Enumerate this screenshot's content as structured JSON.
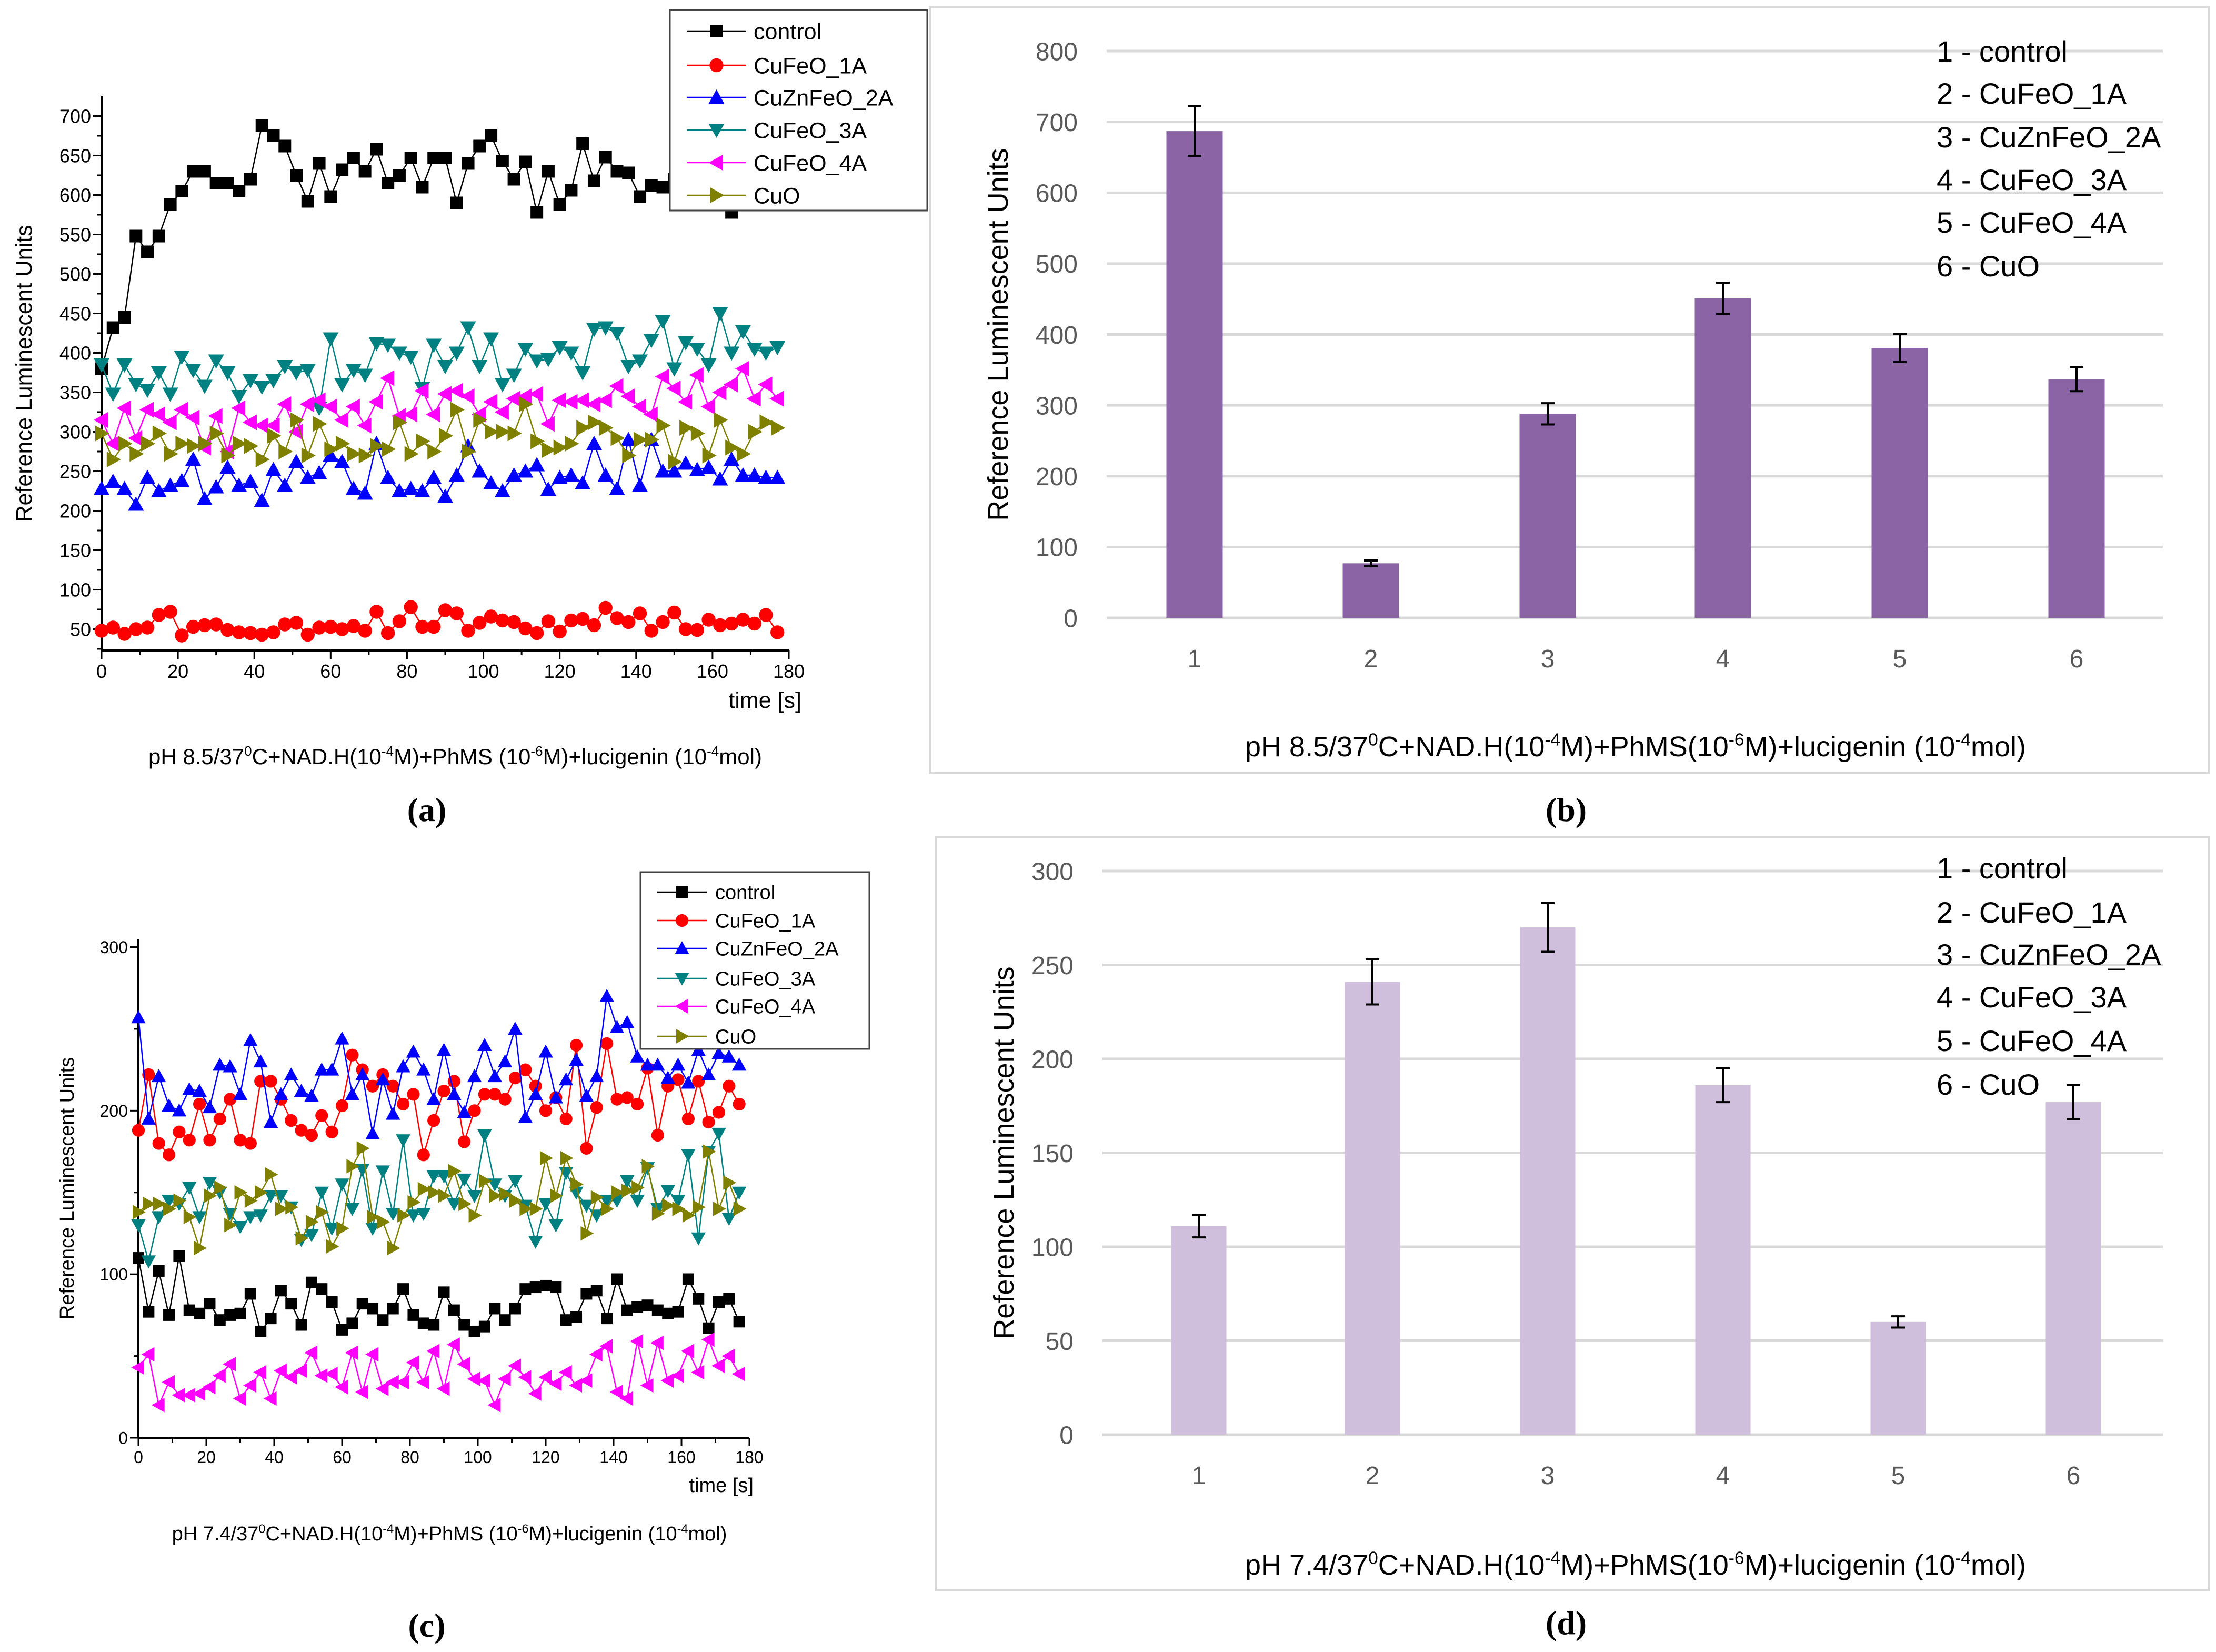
{
  "colors": {
    "control": "#000000",
    "CuFeO_1A": "#ff0000",
    "CuZnFeO_2A": "#0000ff",
    "CuFeO_3A": "#008080",
    "CuFeO_4A": "#ff00ff",
    "CuO": "#808000",
    "bar_b": "#8a64a5",
    "bar_d": "#cfbfdd",
    "grid": "#d9d9d9"
  },
  "chart_data": [
    {
      "panel": "(a)",
      "type": "line",
      "ylabel": "Reference Luminescent Units",
      "xlabel": "time [s]",
      "xlim": [
        0,
        180
      ],
      "ylim": [
        23,
        725
      ],
      "xticks": [
        0,
        20,
        40,
        60,
        80,
        100,
        120,
        140,
        160,
        180
      ],
      "yticks": [
        50,
        100,
        150,
        200,
        250,
        300,
        350,
        400,
        450,
        500,
        550,
        600,
        650,
        700
      ],
      "x_step": 3,
      "legend_position": "top-right",
      "caption": [
        {
          "t": "pH 8.5/37"
        },
        {
          "s": "0"
        },
        {
          "t": "C+NAD.H(10"
        },
        {
          "s": "-4"
        },
        {
          "t": "M)+PhMS (10"
        },
        {
          "s": "-6"
        },
        {
          "t": "M)+lucigenin (10"
        },
        {
          "s": "-4"
        },
        {
          "t": "mol)"
        }
      ],
      "series": [
        {
          "name": "control",
          "marker": "square",
          "values": [
            380,
            432,
            445,
            548,
            528,
            548,
            588,
            605,
            630,
            630,
            615,
            615,
            605,
            620,
            688,
            675,
            662,
            625,
            592,
            640,
            598,
            632,
            647,
            630,
            658,
            615,
            625,
            647,
            610,
            647,
            647,
            590,
            640,
            662,
            675,
            643,
            620,
            642,
            578,
            630,
            588,
            606,
            665,
            618,
            648,
            630,
            628,
            598,
            612,
            610,
            620,
            640,
            625,
            610,
            605,
            578,
            600,
            620,
            610,
            615
          ]
        },
        {
          "name": "CuFeO_1A",
          "marker": "circle",
          "values": [
            48,
            52,
            44,
            50,
            52,
            68,
            72,
            42,
            53,
            55,
            56,
            49,
            46,
            45,
            43,
            46,
            56,
            58,
            43,
            52,
            53,
            50,
            54,
            48,
            72,
            45,
            60,
            78,
            53,
            53,
            74,
            70,
            48,
            58,
            66,
            61,
            59,
            51,
            45,
            60,
            47,
            61,
            63,
            55,
            77,
            64,
            59,
            70,
            48,
            59,
            71,
            50,
            49,
            62,
            55,
            57,
            62,
            57,
            68,
            46
          ]
        },
        {
          "name": "CuZnFeO_2A",
          "marker": "triangle-up",
          "values": [
            228,
            237,
            228,
            208,
            242,
            225,
            232,
            238,
            265,
            215,
            230,
            255,
            232,
            237,
            213,
            252,
            232,
            262,
            242,
            248,
            270,
            262,
            228,
            222,
            285,
            242,
            225,
            228,
            225,
            242,
            218,
            245,
            282,
            250,
            235,
            225,
            245,
            250,
            258,
            227,
            242,
            245,
            235,
            285,
            245,
            228,
            290,
            232,
            290,
            250,
            250,
            260,
            252,
            255,
            240,
            265,
            245,
            245,
            242,
            242
          ]
        },
        {
          "name": "CuFeO_3A",
          "marker": "triangle-down",
          "values": [
            385,
            348,
            385,
            360,
            353,
            375,
            348,
            395,
            378,
            358,
            390,
            375,
            345,
            365,
            357,
            365,
            383,
            375,
            378,
            330,
            418,
            360,
            378,
            372,
            412,
            410,
            400,
            395,
            355,
            410,
            383,
            400,
            432,
            383,
            418,
            360,
            372,
            405,
            390,
            392,
            407,
            400,
            375,
            430,
            432,
            425,
            383,
            390,
            416,
            440,
            380,
            413,
            405,
            385,
            450,
            400,
            427,
            405,
            400,
            407
          ]
        },
        {
          "name": "CuFeO_4A",
          "marker": "triangle-left",
          "values": [
            315,
            285,
            330,
            292,
            328,
            322,
            312,
            328,
            318,
            280,
            320,
            275,
            330,
            312,
            308,
            308,
            335,
            300,
            335,
            340,
            332,
            315,
            332,
            308,
            338,
            368,
            320,
            322,
            352,
            322,
            348,
            352,
            345,
            322,
            338,
            325,
            342,
            345,
            348,
            310,
            340,
            338,
            340,
            335,
            340,
            358,
            345,
            332,
            322,
            370,
            355,
            338,
            372,
            332,
            350,
            360,
            380,
            342,
            360,
            342
          ]
        },
        {
          "name": "CuO",
          "marker": "triangle-right",
          "values": [
            298,
            265,
            285,
            272,
            285,
            298,
            272,
            285,
            282,
            285,
            298,
            270,
            285,
            282,
            265,
            295,
            275,
            315,
            270,
            310,
            278,
            285,
            272,
            270,
            282,
            278,
            312,
            272,
            288,
            275,
            295,
            328,
            275,
            315,
            300,
            300,
            298,
            335,
            288,
            277,
            280,
            285,
            305,
            312,
            305,
            292,
            270,
            290,
            290,
            308,
            262,
            305,
            298,
            270,
            315,
            280,
            272,
            300,
            312,
            305
          ]
        }
      ]
    },
    {
      "panel": "(b)",
      "type": "bar",
      "ylabel": "Reference Luminescent Units",
      "ylim": [
        0,
        800
      ],
      "yticks": [
        0,
        100,
        200,
        300,
        400,
        500,
        600,
        700,
        800
      ],
      "categories": [
        "1",
        "2",
        "3",
        "4",
        "5",
        "6"
      ],
      "values": [
        687,
        77,
        288,
        451,
        381,
        337
      ],
      "errors": [
        35,
        4,
        15,
        22,
        20,
        17
      ],
      "legend": [
        "1 - control",
        "2 - CuFeO_1A",
        "3 - CuZnFeO_2A",
        "4 - CuFeO_3A",
        "5 - CuFeO_4A",
        "6 - CuO"
      ],
      "legend_position": "top-right",
      "grid": true,
      "caption": [
        {
          "t": "pH 8.5/37"
        },
        {
          "s": "0"
        },
        {
          "t": "C+NAD.H(10"
        },
        {
          "s": "-4"
        },
        {
          "t": "M)+PhMS(10"
        },
        {
          "s": "-6"
        },
        {
          "t": "M)+lucigenin (10"
        },
        {
          "s": "-4"
        },
        {
          "t": "mol)"
        }
      ]
    },
    {
      "panel": "(c)",
      "type": "line",
      "ylabel": "Reference Luminescent Units",
      "xlabel": "time [s]",
      "xlim": [
        0,
        180
      ],
      "ylim": [
        0,
        305
      ],
      "xticks": [
        0,
        20,
        40,
        60,
        80,
        100,
        120,
        140,
        160,
        180
      ],
      "yticks": [
        0,
        100,
        200,
        300
      ],
      "x_step": 3,
      "legend_position": "top-right",
      "caption": [
        {
          "t": "pH 7.4/37"
        },
        {
          "s": "0"
        },
        {
          "t": "C+NAD.H(10"
        },
        {
          "s": "-4"
        },
        {
          "t": "M)+PhMS (10"
        },
        {
          "s": "-6"
        },
        {
          "t": "M)+lucigenin (10"
        },
        {
          "s": "-4"
        },
        {
          "t": "mol)"
        }
      ],
      "series": [
        {
          "name": "control",
          "marker": "square",
          "values": [
            110,
            77,
            102,
            75,
            111,
            78,
            76,
            82,
            72,
            75,
            76,
            88,
            65,
            73,
            90,
            82,
            69,
            95,
            91,
            83,
            66,
            70,
            82,
            79,
            72,
            79,
            91,
            75,
            70,
            69,
            89,
            78,
            69,
            65,
            68,
            79,
            72,
            79,
            91,
            92,
            93,
            92,
            72,
            74,
            88,
            90,
            73,
            97,
            78,
            80,
            81,
            78,
            76,
            77,
            97,
            85,
            67,
            83,
            85,
            71
          ]
        },
        {
          "name": "CuFeO_1A",
          "marker": "circle",
          "values": [
            188,
            222,
            180,
            173,
            187,
            182,
            204,
            182,
            195,
            207,
            182,
            180,
            218,
            218,
            207,
            194,
            188,
            185,
            197,
            187,
            203,
            234,
            225,
            215,
            222,
            215,
            204,
            210,
            173,
            194,
            212,
            218,
            181,
            200,
            210,
            210,
            207,
            220,
            225,
            215,
            200,
            208,
            195,
            240,
            177,
            202,
            241,
            207,
            208,
            204,
            226,
            185,
            215,
            219,
            195,
            218,
            193,
            199,
            215,
            204
          ]
        },
        {
          "name": "CuZnFeO_2A",
          "marker": "triangle-up",
          "values": [
            257,
            195,
            221,
            203,
            200,
            213,
            212,
            202,
            228,
            227,
            210,
            243,
            230,
            193,
            210,
            222,
            212,
            209,
            225,
            225,
            244,
            210,
            222,
            186,
            219,
            198,
            227,
            236,
            225,
            207,
            237,
            210,
            199,
            221,
            240,
            221,
            230,
            250,
            196,
            210,
            236,
            208,
            219,
            231,
            209,
            221,
            270,
            251,
            254,
            233,
            228,
            228,
            220,
            228,
            217,
            237,
            222,
            235,
            233,
            228
          ]
        },
        {
          "name": "CuFeO_3A",
          "marker": "triangle-down",
          "values": [
            130,
            108,
            135,
            145,
            143,
            153,
            135,
            156,
            150,
            137,
            129,
            135,
            136,
            148,
            148,
            141,
            121,
            124,
            150,
            128,
            155,
            140,
            164,
            128,
            163,
            137,
            182,
            136,
            137,
            160,
            160,
            143,
            158,
            148,
            185,
            155,
            148,
            157,
            142,
            120,
            143,
            130,
            162,
            150,
            142,
            136,
            145,
            145,
            157,
            145,
            165,
            140,
            151,
            145,
            173,
            122,
            175,
            186,
            134,
            150
          ]
        },
        {
          "name": "CuFeO_4A",
          "marker": "triangle-left",
          "values": [
            43,
            51,
            20,
            34,
            26,
            26,
            27,
            31,
            38,
            45,
            24,
            32,
            40,
            24,
            41,
            37,
            41,
            52,
            38,
            39,
            31,
            52,
            28,
            51,
            30,
            34,
            34,
            46,
            34,
            53,
            30,
            57,
            45,
            36,
            35,
            20,
            36,
            44,
            37,
            27,
            37,
            33,
            40,
            32,
            35,
            51,
            56,
            28,
            24,
            59,
            32,
            58,
            35,
            38,
            53,
            40,
            60,
            44,
            50,
            39
          ]
        },
        {
          "name": "CuO",
          "marker": "triangle-right",
          "values": [
            138,
            143,
            143,
            140,
            145,
            135,
            116,
            148,
            153,
            130,
            150,
            145,
            150,
            161,
            140,
            141,
            122,
            132,
            138,
            117,
            128,
            166,
            177,
            135,
            132,
            116,
            136,
            144,
            152,
            150,
            148,
            163,
            143,
            136,
            157,
            148,
            149,
            145,
            140,
            140,
            171,
            148,
            171,
            155,
            125,
            147,
            140,
            150,
            151,
            153,
            166,
            137,
            142,
            140,
            136,
            141,
            175,
            140,
            156,
            140
          ]
        }
      ]
    },
    {
      "panel": "(d)",
      "type": "bar",
      "ylabel": "Reference Luminescent Units",
      "ylim": [
        0,
        300
      ],
      "yticks": [
        0,
        50,
        100,
        150,
        200,
        250,
        300
      ],
      "categories": [
        "1",
        "2",
        "3",
        "4",
        "5",
        "6"
      ],
      "values": [
        111,
        241,
        270,
        186,
        60,
        177
      ],
      "errors": [
        6,
        12,
        13,
        9,
        3,
        9
      ],
      "legend": [
        "1 - control",
        "2 - CuFeO_1A",
        "3 - CuZnFeO_2A",
        "4 - CuFeO_3A",
        "5 - CuFeO_4A",
        "6 - CuO"
      ],
      "legend_position": "top-right",
      "grid": true,
      "caption": [
        {
          "t": "pH 7.4/37"
        },
        {
          "s": "0"
        },
        {
          "t": "C+NAD.H(10"
        },
        {
          "s": "-4"
        },
        {
          "t": "M)+PhMS(10"
        },
        {
          "s": "-6"
        },
        {
          "t": "M)+lucigenin (10"
        },
        {
          "s": "-4"
        },
        {
          "t": "mol)"
        }
      ]
    }
  ]
}
